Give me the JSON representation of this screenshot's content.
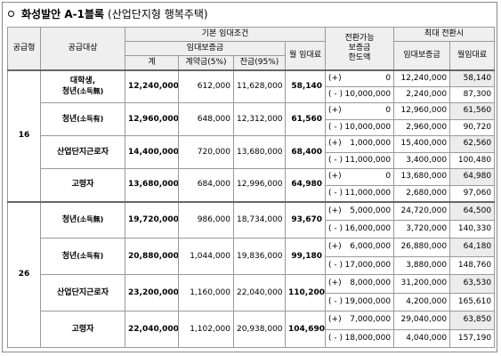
{
  "title": {
    "main": "화성발안 A-1블록",
    "sub": "(산업단지형 행복주택)"
  },
  "header": {
    "supply_type": "공급형",
    "target": "공급대상",
    "basic": "기본 임대조건",
    "deposit": "임대보증금",
    "monthly": "월 임대료",
    "total": "계",
    "contract": "계약금(5%)",
    "balance": "잔금(95%)",
    "convertible": [
      "전환가능",
      "보증금",
      "한도액"
    ],
    "max": "최대 전환시",
    "max_deposit": "임대보증금",
    "max_monthly": "월임대료"
  },
  "groups": [
    {
      "type": "16",
      "targets": [
        {
          "lines": [
            "대학생,",
            "청년"
          ],
          "note": "(소득無)",
          "total": "12,240,000",
          "contract": "612,000",
          "balance": "11,628,000",
          "monthly": "58,140",
          "conversions": [
            {
              "sign": "(+)",
              "amount": "0",
              "deposit": "12,240,000",
              "monthly": "58,140"
            },
            {
              "sign": "( - )",
              "amount": "10,000,000",
              "deposit": "2,240,000",
              "monthly": "87,300"
            }
          ]
        },
        {
          "lines": [
            "청년"
          ],
          "note": "(소득有)",
          "total": "12,960,000",
          "contract": "648,000",
          "balance": "12,312,000",
          "monthly": "61,560",
          "conversions": [
            {
              "sign": "(+)",
              "amount": "0",
              "deposit": "12,960,000",
              "monthly": "61,560"
            },
            {
              "sign": "( - )",
              "amount": "10,000,000",
              "deposit": "2,960,000",
              "monthly": "90,720"
            }
          ]
        },
        {
          "lines": [
            "산업단지근로자"
          ],
          "total": "14,400,000",
          "contract": "720,000",
          "balance": "13,680,000",
          "monthly": "68,400",
          "conversions": [
            {
              "sign": "(+)",
              "amount": "1,000,000",
              "deposit": "15,400,000",
              "monthly": "62,560"
            },
            {
              "sign": "( - )",
              "amount": "11,000,000",
              "deposit": "3,400,000",
              "monthly": "100,480"
            }
          ]
        },
        {
          "lines": [
            "고령자"
          ],
          "total": "13,680,000",
          "contract": "684,000",
          "balance": "12,996,000",
          "monthly": "64,980",
          "conversions": [
            {
              "sign": "(+)",
              "amount": "0",
              "deposit": "13,680,000",
              "monthly": "64,980"
            },
            {
              "sign": "( - )",
              "amount": "11,000,000",
              "deposit": "2,680,000",
              "monthly": "97,060"
            }
          ]
        }
      ]
    },
    {
      "type": "26",
      "targets": [
        {
          "lines": [
            "청년"
          ],
          "note": "(소득無)",
          "total": "19,720,000",
          "contract": "986,000",
          "balance": "18,734,000",
          "monthly": "93,670",
          "conversions": [
            {
              "sign": "(+)",
              "amount": "5,000,000",
              "deposit": "24,720,000",
              "monthly": "64,500"
            },
            {
              "sign": "( - )",
              "amount": "16,000,000",
              "deposit": "3,720,000",
              "monthly": "140,330"
            }
          ]
        },
        {
          "lines": [
            "청년"
          ],
          "note": "(소득有)",
          "total": "20,880,000",
          "contract": "1,044,000",
          "balance": "19,836,000",
          "monthly": "99,180",
          "conversions": [
            {
              "sign": "(+)",
              "amount": "6,000,000",
              "deposit": "26,880,000",
              "monthly": "64,180"
            },
            {
              "sign": "( - )",
              "amount": "17,000,000",
              "deposit": "3,880,000",
              "monthly": "148,760"
            }
          ]
        },
        {
          "lines": [
            "산업단지근로자"
          ],
          "total": "23,200,000",
          "contract": "1,160,000",
          "balance": "22,040,000",
          "monthly": "110,200",
          "conversions": [
            {
              "sign": "(+)",
              "amount": "8,000,000",
              "deposit": "31,200,000",
              "monthly": "63,530"
            },
            {
              "sign": "( - )",
              "amount": "19,000,000",
              "deposit": "4,200,000",
              "monthly": "165,610"
            }
          ]
        },
        {
          "lines": [
            "고령자"
          ],
          "total": "22,040,000",
          "contract": "1,102,000",
          "balance": "20,938,000",
          "monthly": "104,690",
          "conversions": [
            {
              "sign": "(+)",
              "amount": "7,000,000",
              "deposit": "29,040,000",
              "monthly": "63,850"
            },
            {
              "sign": "( - )",
              "amount": "18,000,000",
              "deposit": "4,040,000",
              "monthly": "157,190"
            }
          ]
        }
      ]
    }
  ]
}
